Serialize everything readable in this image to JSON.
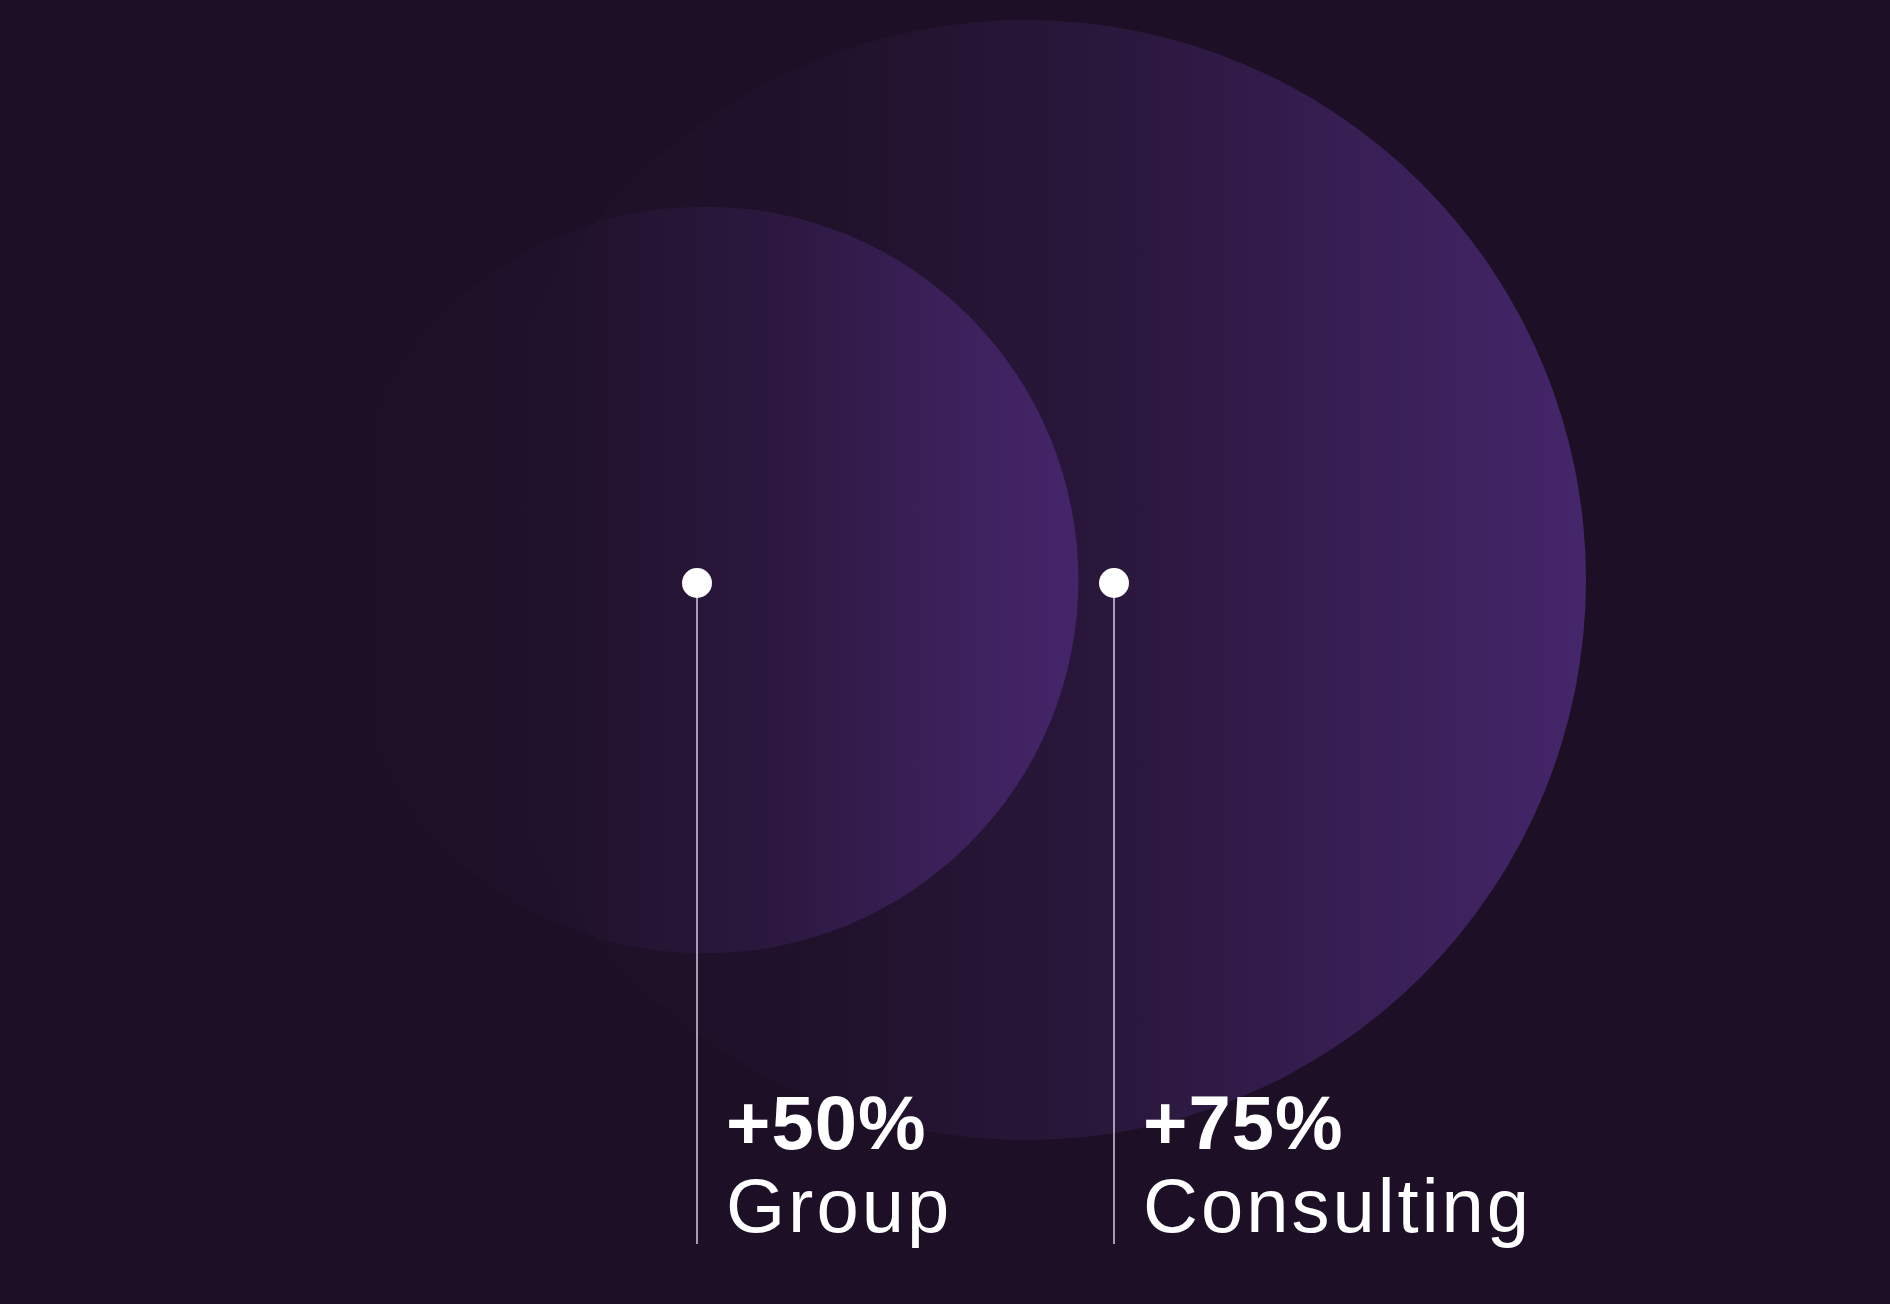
{
  "chart_data": {
    "type": "other",
    "categories": [
      "Group",
      "Consulting"
    ],
    "values": [
      50,
      75
    ],
    "value_labels": [
      "+50%",
      "+75%"
    ],
    "colors": [
      "#45256a",
      "#45266b"
    ]
  }
}
